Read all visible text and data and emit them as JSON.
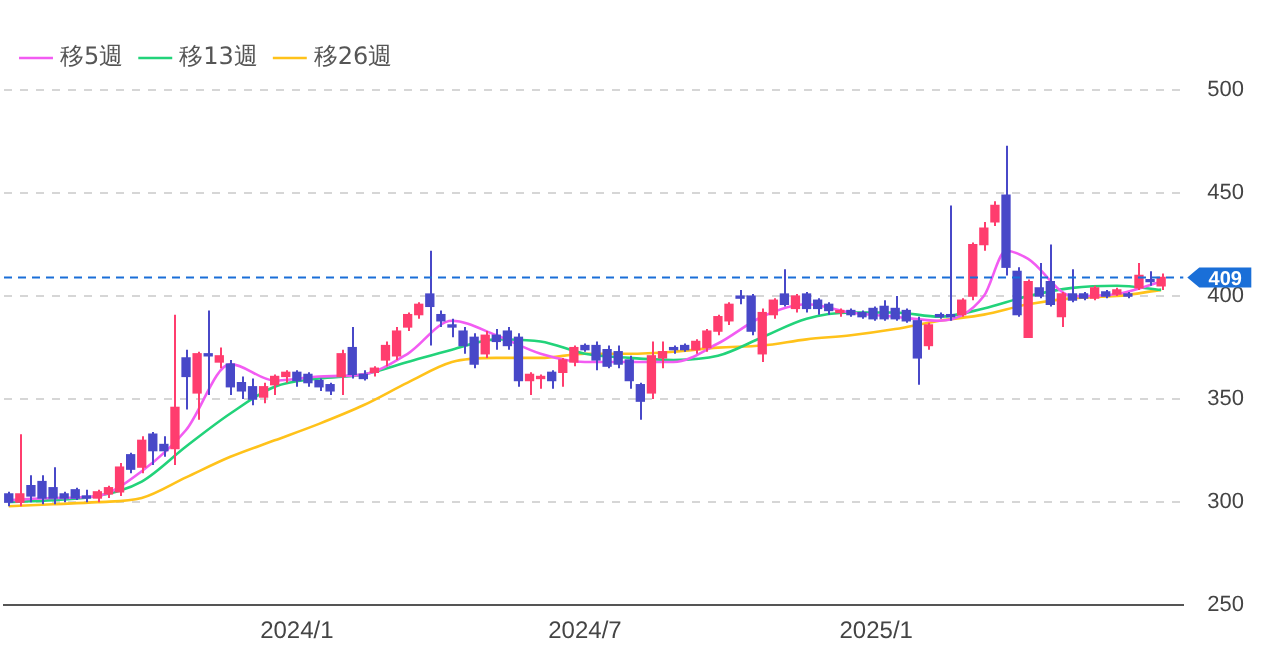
{
  "chart_data": {
    "type": "candlestick",
    "xlim": [
      "2023-06-30",
      "2025-07-14"
    ],
    "xticks": [
      {
        "value": "2024-01-01",
        "label": "2024/1"
      },
      {
        "value": "2024-07-01",
        "label": "2024/7"
      },
      {
        "value": "2025-01-01",
        "label": "2025/1"
      }
    ],
    "ylim": [
      250,
      500
    ],
    "yticks": [
      250,
      300,
      350,
      400,
      450,
      500
    ],
    "grid": "y",
    "legend": "top left",
    "ref_lines": [
      {
        "axis": "y",
        "value": 409,
        "label": "409",
        "color": "#1a6fd8",
        "line_style": "dashed"
      }
    ],
    "series": [
      {
        "type": "candlestick",
        "x": [
          "2023-07-03",
          "2023-07-10",
          "2023-07-17",
          "2023-07-24",
          "2023-07-31",
          "2023-08-07",
          "2023-08-14",
          "2023-08-21",
          "2023-08-28",
          "2023-09-04",
          "2023-09-11",
          "2023-09-18",
          "2023-09-25",
          "2023-10-02",
          "2023-10-09",
          "2023-10-16",
          "2023-10-23",
          "2023-10-30",
          "2023-11-06",
          "2023-11-13",
          "2023-11-20",
          "2023-11-27",
          "2023-12-04",
          "2023-12-11",
          "2023-12-18",
          "2023-12-25",
          "2024-01-01",
          "2024-01-08",
          "2024-01-15",
          "2024-01-22",
          "2024-01-29",
          "2024-02-05",
          "2024-02-12",
          "2024-02-19",
          "2024-02-26",
          "2024-03-04",
          "2024-03-11",
          "2024-03-18",
          "2024-03-25",
          "2024-04-01",
          "2024-04-08",
          "2024-04-15",
          "2024-04-22",
          "2024-04-29",
          "2024-05-06",
          "2024-05-13",
          "2024-05-20",
          "2024-05-27",
          "2024-06-03",
          "2024-06-10",
          "2024-06-17",
          "2024-06-24",
          "2024-07-01",
          "2024-07-08",
          "2024-07-15",
          "2024-07-22",
          "2024-07-29",
          "2024-08-05",
          "2024-08-12",
          "2024-08-19",
          "2024-08-26",
          "2024-09-02",
          "2024-09-09",
          "2024-09-16",
          "2024-09-23",
          "2024-09-30",
          "2024-10-07",
          "2024-10-14",
          "2024-10-21",
          "2024-10-28",
          "2024-11-04",
          "2024-11-11",
          "2024-11-18",
          "2024-11-25",
          "2024-12-02",
          "2024-12-09",
          "2024-12-16",
          "2024-12-23",
          "2024-12-30",
          "2025-01-06",
          "2025-01-13",
          "2025-01-20",
          "2025-01-27",
          "2025-02-03",
          "2025-02-10",
          "2025-02-17",
          "2025-02-24",
          "2025-03-03",
          "2025-03-10",
          "2025-03-17",
          "2025-03-24",
          "2025-03-31",
          "2025-04-07",
          "2025-04-14",
          "2025-04-21",
          "2025-04-28",
          "2025-05-05",
          "2025-05-12",
          "2025-05-19",
          "2025-05-26",
          "2025-06-02",
          "2025-06-09",
          "2025-06-16",
          "2025-06-23",
          "2025-06-30"
        ],
        "ohlc": [
          [
            304,
            305,
            298,
            300
          ],
          [
            300,
            333,
            298,
            304
          ],
          [
            308,
            313,
            300,
            303
          ],
          [
            310,
            313,
            299,
            302
          ],
          [
            307,
            317,
            299,
            302
          ],
          [
            304,
            305,
            300,
            302
          ],
          [
            306,
            307,
            301,
            302
          ],
          [
            303,
            306,
            300,
            302
          ],
          [
            302,
            306,
            300,
            305
          ],
          [
            304,
            308,
            302,
            307
          ],
          [
            305,
            319,
            303,
            317
          ],
          [
            323,
            324,
            314,
            316
          ],
          [
            317,
            332,
            314,
            330
          ],
          [
            333,
            334,
            318,
            325
          ],
          [
            328,
            332,
            322,
            325
          ],
          [
            326,
            391,
            318,
            346
          ],
          [
            370,
            374,
            345,
            361
          ],
          [
            353,
            373,
            340,
            372
          ],
          [
            372,
            393,
            352,
            371
          ],
          [
            368,
            375,
            365,
            371
          ],
          [
            367,
            369,
            352,
            356
          ],
          [
            358,
            361,
            350,
            354
          ],
          [
            356,
            360,
            347,
            350
          ],
          [
            351,
            358,
            348,
            356
          ],
          [
            357,
            362,
            352,
            361
          ],
          [
            361,
            364,
            358,
            363
          ],
          [
            363,
            364,
            356,
            359
          ],
          [
            362,
            363,
            356,
            358
          ],
          [
            359,
            360,
            354,
            356
          ],
          [
            357,
            358,
            352,
            354
          ],
          [
            361,
            374,
            352,
            372
          ],
          [
            375,
            385,
            360,
            362
          ],
          [
            362,
            364,
            359,
            360
          ],
          [
            363,
            366,
            361,
            365
          ],
          [
            369,
            378,
            366,
            376
          ],
          [
            371,
            385,
            369,
            383
          ],
          [
            385,
            392,
            383,
            391
          ],
          [
            391,
            397,
            389,
            396
          ],
          [
            401,
            422,
            376,
            395
          ],
          [
            391,
            393,
            385,
            388
          ],
          [
            386,
            389,
            380,
            385
          ],
          [
            383,
            385,
            372,
            376
          ],
          [
            380,
            382,
            365,
            367
          ],
          [
            372,
            383,
            370,
            381
          ],
          [
            381,
            384,
            374,
            378
          ],
          [
            383,
            385,
            374,
            376
          ],
          [
            380,
            382,
            356,
            359
          ],
          [
            359,
            363,
            352,
            362
          ],
          [
            360,
            362,
            355,
            361
          ],
          [
            363,
            364,
            355,
            359
          ],
          [
            363,
            370,
            356,
            369
          ],
          [
            368,
            376,
            366,
            375
          ],
          [
            376,
            377,
            373,
            374
          ],
          [
            376,
            378,
            364,
            369
          ],
          [
            374,
            376,
            365,
            366
          ],
          [
            373,
            376,
            365,
            367
          ],
          [
            369,
            371,
            355,
            359
          ],
          [
            357,
            358,
            340,
            349
          ],
          [
            353,
            378,
            350,
            371
          ],
          [
            370,
            378,
            365,
            373
          ],
          [
            375,
            376,
            372,
            374
          ],
          [
            376,
            377,
            373,
            374
          ],
          [
            374,
            379,
            372,
            378
          ],
          [
            375,
            384,
            373,
            383
          ],
          [
            383,
            391,
            381,
            390
          ],
          [
            388,
            397,
            386,
            396
          ],
          [
            400,
            403,
            396,
            399
          ],
          [
            400,
            401,
            381,
            383
          ],
          [
            372,
            394,
            368,
            392
          ],
          [
            391,
            399,
            389,
            398
          ],
          [
            401,
            413,
            395,
            396
          ],
          [
            394,
            401,
            392,
            400
          ],
          [
            401,
            402,
            392,
            394
          ],
          [
            398,
            399,
            391,
            394
          ],
          [
            396,
            397,
            391,
            393
          ],
          [
            392,
            394,
            390,
            393
          ],
          [
            393,
            394,
            390,
            391
          ],
          [
            392,
            393,
            389,
            390
          ],
          [
            394,
            395,
            388,
            389
          ],
          [
            395,
            398,
            388,
            389
          ],
          [
            394,
            400,
            388,
            389
          ],
          [
            393,
            394,
            387,
            388
          ],
          [
            388,
            390,
            357,
            370
          ],
          [
            376,
            387,
            374,
            386
          ],
          [
            391,
            392,
            389,
            390
          ],
          [
            391,
            444,
            388,
            390
          ],
          [
            391,
            399,
            390,
            398
          ],
          [
            400,
            426,
            398,
            425
          ],
          [
            425,
            436,
            422,
            433
          ],
          [
            436,
            446,
            434,
            444
          ],
          [
            449,
            473,
            410,
            414
          ],
          [
            412,
            414,
            390,
            391
          ],
          [
            380,
            408,
            380,
            407
          ],
          [
            404,
            416,
            399,
            400
          ],
          [
            407,
            425,
            395,
            396
          ],
          [
            390,
            402,
            385,
            401
          ],
          [
            401,
            413,
            397,
            398
          ],
          [
            401,
            402,
            398,
            399
          ],
          [
            399,
            405,
            398,
            404
          ],
          [
            402,
            403,
            399,
            400
          ],
          [
            401,
            404,
            400,
            403
          ],
          [
            400,
            402,
            399,
            401
          ],
          [
            404,
            416,
            403,
            410
          ],
          [
            408,
            412,
            405,
            407
          ],
          [
            405,
            411,
            403,
            409
          ]
        ],
        "colors": [
          "#4848c8",
          "#ff3d6e",
          "#4848c8",
          "#4848c8",
          "#4848c8",
          "#4848c8",
          "#4848c8",
          "#4848c8",
          "#ff3d6e",
          "#ff3d6e",
          "#ff3d6e",
          "#4848c8",
          "#ff3d6e",
          "#4848c8",
          "#4848c8",
          "#ff3d6e",
          "#4848c8",
          "#ff3d6e",
          "#4848c8",
          "#ff3d6e",
          "#4848c8",
          "#4848c8",
          "#4848c8",
          "#ff3d6e",
          "#ff3d6e",
          "#ff3d6e",
          "#4848c8",
          "#4848c8",
          "#4848c8",
          "#4848c8",
          "#ff3d6e",
          "#4848c8",
          "#4848c8",
          "#ff3d6e",
          "#ff3d6e",
          "#ff3d6e",
          "#ff3d6e",
          "#ff3d6e",
          "#4848c8",
          "#4848c8",
          "#4848c8",
          "#4848c8",
          "#4848c8",
          "#ff3d6e",
          "#4848c8",
          "#4848c8",
          "#4848c8",
          "#ff3d6e",
          "#ff3d6e",
          "#4848c8",
          "#ff3d6e",
          "#ff3d6e",
          "#4848c8",
          "#4848c8",
          "#4848c8",
          "#4848c8",
          "#4848c8",
          "#4848c8",
          "#ff3d6e",
          "#ff3d6e",
          "#4848c8",
          "#4848c8",
          "#ff3d6e",
          "#ff3d6e",
          "#ff3d6e",
          "#ff3d6e",
          "#4848c8",
          "#4848c8",
          "#ff3d6e",
          "#ff3d6e",
          "#4848c8",
          "#ff3d6e",
          "#4848c8",
          "#4848c8",
          "#4848c8",
          "#ff3d6e",
          "#4848c8",
          "#4848c8",
          "#4848c8",
          "#4848c8",
          "#4848c8",
          "#4848c8",
          "#4848c8",
          "#ff3d6e",
          "#4848c8",
          "#4848c8",
          "#ff3d6e",
          "#ff3d6e",
          "#ff3d6e",
          "#ff3d6e",
          "#4848c8",
          "#4848c8",
          "#ff3d6e",
          "#4848c8",
          "#4848c8",
          "#ff3d6e",
          "#4848c8",
          "#4848c8",
          "#ff3d6e",
          "#4848c8",
          "#ff3d6e",
          "#4848c8",
          "#ff3d6e",
          "#4848c8",
          "#ff3d6e"
        ]
      },
      {
        "type": "line",
        "name": "移5週",
        "color": "#f25cf2",
        "x": [
          "2023-07-03",
          "2023-07-31",
          "2023-08-28",
          "2023-09-25",
          "2023-10-23",
          "2023-11-20",
          "2023-12-18",
          "2024-01-15",
          "2024-02-12",
          "2024-03-11",
          "2024-04-08",
          "2024-05-06",
          "2024-06-03",
          "2024-07-01",
          "2024-07-29",
          "2024-08-26",
          "2024-09-23",
          "2024-10-21",
          "2024-11-18",
          "2024-12-16",
          "2025-01-13",
          "2025-02-10",
          "2025-03-10",
          "2025-03-24",
          "2025-04-07",
          "2025-05-05",
          "2025-06-02",
          "2025-06-30"
        ],
        "values": [
          301,
          302,
          303,
          315,
          335,
          367,
          359,
          361,
          362,
          372,
          388,
          381,
          372,
          368,
          368,
          368,
          377,
          390,
          396,
          392,
          390,
          388,
          400,
          422,
          418,
          400,
          401,
          407
        ]
      },
      {
        "type": "line",
        "name": "移13週",
        "color": "#22d37a",
        "x": [
          "2023-07-03",
          "2023-07-31",
          "2023-08-28",
          "2023-09-25",
          "2023-10-23",
          "2023-11-20",
          "2023-12-18",
          "2024-01-15",
          "2024-02-12",
          "2024-03-11",
          "2024-04-08",
          "2024-05-06",
          "2024-06-03",
          "2024-07-01",
          "2024-07-29",
          "2024-08-26",
          "2024-09-23",
          "2024-10-21",
          "2024-11-18",
          "2024-12-16",
          "2025-01-13",
          "2025-02-10",
          "2025-03-10",
          "2025-04-07",
          "2025-05-05",
          "2025-06-02",
          "2025-06-30"
        ],
        "values": [
          300,
          301,
          303,
          310,
          327,
          343,
          356,
          360,
          362,
          368,
          374,
          379,
          378,
          372,
          370,
          369,
          371,
          380,
          389,
          392,
          392,
          390,
          394,
          400,
          404,
          405,
          403
        ]
      },
      {
        "type": "line",
        "name": "移26週",
        "color": "#ffc21a",
        "x": [
          "2023-07-03",
          "2023-07-31",
          "2023-08-28",
          "2023-09-25",
          "2023-10-23",
          "2023-11-20",
          "2023-12-18",
          "2024-01-15",
          "2024-02-12",
          "2024-03-11",
          "2024-04-08",
          "2024-05-06",
          "2024-06-03",
          "2024-07-01",
          "2024-07-29",
          "2024-08-26",
          "2024-09-23",
          "2024-10-21",
          "2024-11-18",
          "2024-12-16",
          "2025-01-13",
          "2025-02-10",
          "2025-03-10",
          "2025-04-07",
          "2025-05-05",
          "2025-06-02",
          "2025-06-30"
        ],
        "values": [
          298,
          299,
          300,
          302,
          312,
          322,
          330,
          338,
          347,
          358,
          368,
          370,
          370,
          372,
          372,
          373,
          375,
          376,
          379,
          381,
          384,
          388,
          391,
          396,
          399,
          400,
          403
        ]
      }
    ]
  }
}
